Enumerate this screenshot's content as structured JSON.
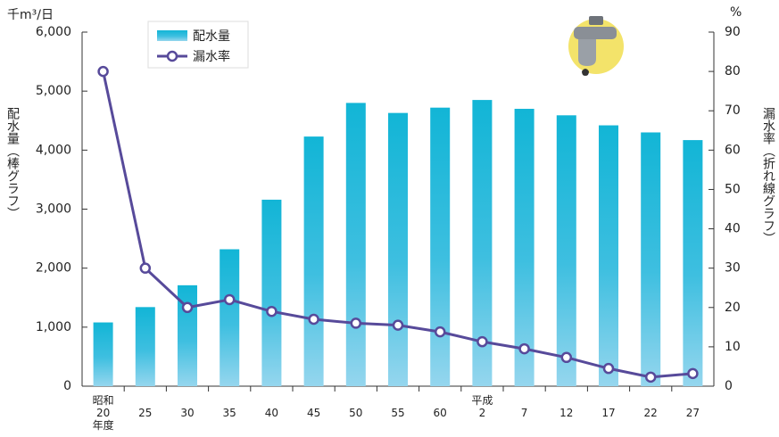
{
  "chart_data": {
    "type": "bar",
    "y_unit": "千m³/日",
    "y2_unit": "%",
    "ylabel": "配水量（棒グラフ）",
    "y2label": "漏水率（折れ線グラフ）",
    "categories": [
      "昭和\n20\n年度",
      "25",
      "30",
      "35",
      "40",
      "45",
      "50",
      "55",
      "60",
      "平成\n2",
      "7",
      "12",
      "17",
      "22",
      "27"
    ],
    "series": [
      {
        "name": "配水量",
        "type": "bar",
        "color": "#17b6d8",
        "values": [
          1080,
          1340,
          1710,
          2320,
          3160,
          4230,
          4800,
          4630,
          4720,
          4850,
          4700,
          4590,
          4420,
          4300,
          4170
        ]
      },
      {
        "name": "漏水率",
        "type": "line",
        "axis": "y2",
        "color": "#574a9a",
        "values": [
          80,
          30,
          20,
          22,
          19,
          17,
          16,
          15.5,
          13.8,
          11.3,
          9.5,
          7.3,
          4.5,
          2.3,
          3.2
        ]
      }
    ],
    "ylim": [
      0,
      6000
    ],
    "yticks": [
      0,
      {
        "value": 1000,
        "label": "1,000"
      },
      {
        "value": 2000,
        "label": "2,000"
      },
      {
        "value": 3000,
        "label": "3,000"
      },
      {
        "value": 4000,
        "label": "4,000"
      },
      {
        "value": 5000,
        "label": "5,000"
      },
      {
        "value": 6000,
        "label": "6,000"
      }
    ],
    "y2lim": [
      0,
      90
    ],
    "y2ticks": [
      0,
      10,
      20,
      30,
      40,
      50,
      60,
      70,
      80,
      90
    ]
  }
}
